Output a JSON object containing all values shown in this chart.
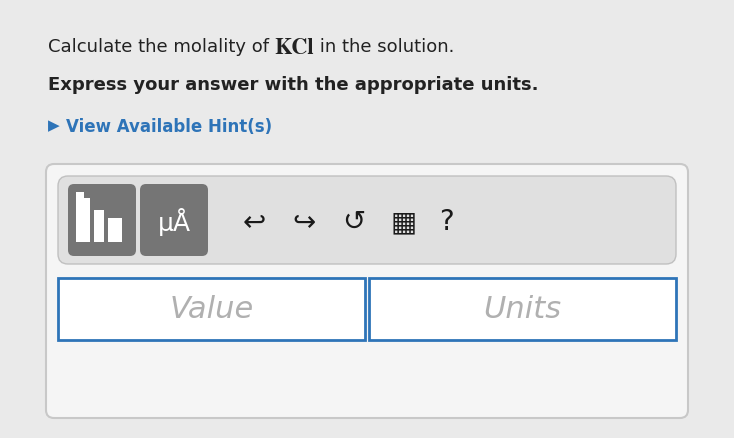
{
  "bg_color": "#eaeaea",
  "title_line1": "Calculate the molality of ",
  "title_kcl": "KCl",
  "title_line1_end": " in the solution.",
  "title_line2": "Express your answer with the appropriate units.",
  "hint_arrow": "▶",
  "hint_link": "View Available Hint(s)",
  "hint_color": "#2e74b8",
  "panel_bg": "#f5f5f5",
  "panel_border": "#c8c8c8",
  "toolbar_bg": "#e0e0e0",
  "toolbar_border": "#c0c0c0",
  "btn_color": "#757575",
  "btn_text_color": "#ffffff",
  "input_border": "#2e74b8",
  "input_bg": "#ffffff",
  "value_text": "Value",
  "units_text": "Units",
  "placeholder_color": "#b0b0b0",
  "text_color": "#222222"
}
